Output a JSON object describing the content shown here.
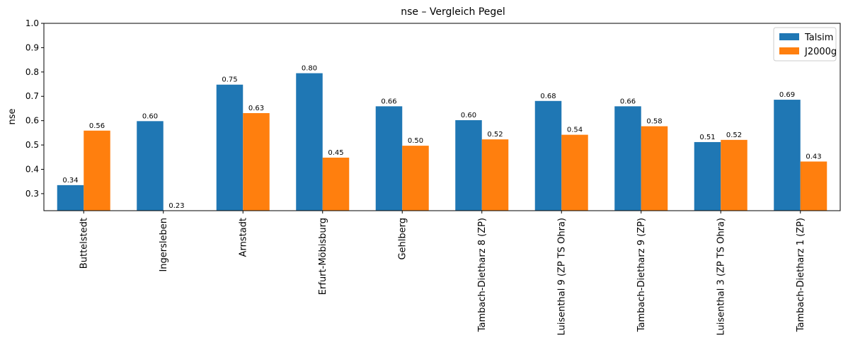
{
  "chart_data": {
    "type": "bar",
    "title": "nse – Vergleich  Pegel",
    "xlabel": "",
    "ylabel": "nse",
    "ylim": [
      0.23,
      1.0
    ],
    "yticks": [
      "0.3",
      "0.4",
      "0.5",
      "0.6",
      "0.7",
      "0.8",
      "0.9",
      "1.0"
    ],
    "grid": false,
    "legend_position": "top-right",
    "categories": [
      "Buttelstedt",
      "Ingersleben",
      "Arnstadt",
      "Erfurt-Möbisburg",
      "Gehlberg",
      "Tambach-Dietharz 8 (ZP)",
      "Luisenthal 9 (ZP TS Ohra)",
      "Tambach-Dietharz 9 (ZP)",
      "Luisenthal 3 (ZP TS Ohra)",
      "Tambach-Dietharz 1 (ZP)"
    ],
    "series": [
      {
        "name": "Talsim",
        "color": "#1f77b4",
        "values": [
          0.335,
          0.598,
          0.748,
          0.795,
          0.659,
          0.602,
          0.681,
          0.659,
          0.512,
          0.686
        ],
        "labels": [
          "0.34",
          "0.60",
          "0.75",
          "0.80",
          "0.66",
          "0.60",
          "0.68",
          "0.66",
          "0.51",
          "0.69"
        ]
      },
      {
        "name": "J2000g",
        "color": "#ff7f0e",
        "values": [
          0.559,
          0.226,
          0.631,
          0.448,
          0.497,
          0.523,
          0.542,
          0.577,
          0.521,
          0.432
        ],
        "labels": [
          "0.56",
          "0.23",
          "0.63",
          "0.45",
          "0.50",
          "0.52",
          "0.54",
          "0.58",
          "0.52",
          "0.43"
        ]
      }
    ]
  }
}
